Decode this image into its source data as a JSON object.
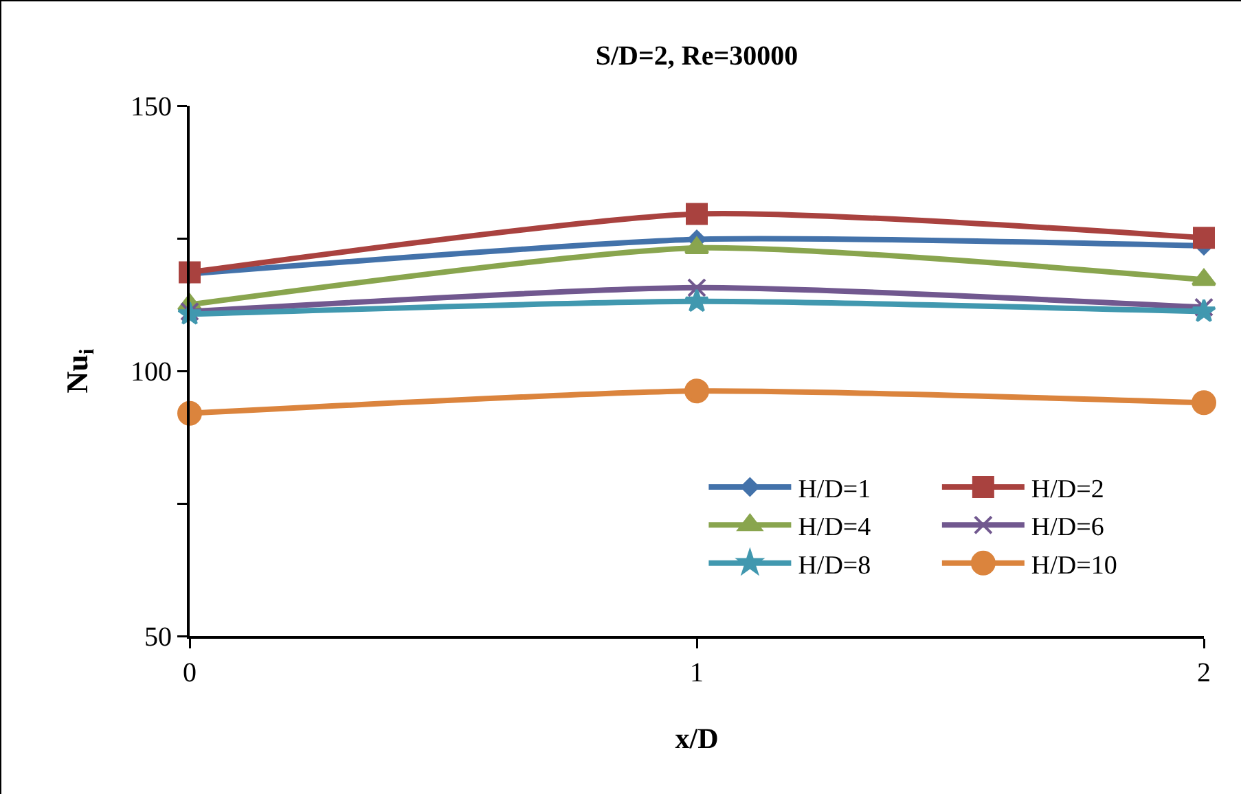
{
  "chart_data": {
    "type": "line",
    "title": "S/D=2, Re=30000",
    "xlabel": "x/D",
    "ylabel": "Nu$_{i}$",
    "x": [
      0,
      1,
      2
    ],
    "xlim": [
      0,
      2
    ],
    "xticks": [
      0,
      1,
      2
    ],
    "ylim": [
      50,
      150
    ],
    "yticks": [
      50,
      {
        "value": 75,
        "label": null
      },
      100,
      {
        "value": 125,
        "label": null
      },
      150
    ],
    "grid": false,
    "legend": "bottom right",
    "series": [
      {
        "name": "H/D=1",
        "color": "#4372aa",
        "marker": "diamond",
        "values": [
          118.3,
          124.8,
          123.6
        ]
      },
      {
        "name": "H/D=2",
        "color": "#a9423f",
        "marker": "square",
        "values": [
          118.6,
          129.6,
          125.1
        ]
      },
      {
        "name": "H/D=4",
        "color": "#89a54e",
        "marker": "triangle",
        "values": [
          112.5,
          123.2,
          117.2
        ]
      },
      {
        "name": "H/D=6",
        "color": "#71588f",
        "marker": "cross",
        "values": [
          111.2,
          115.7,
          112.0
        ]
      },
      {
        "name": "H/D=8",
        "color": "#4198af",
        "marker": "star",
        "values": [
          110.7,
          113.1,
          111.2
        ]
      },
      {
        "name": "H/D=10",
        "color": "#db843d",
        "marker": "circle",
        "values": [
          92.0,
          96.2,
          94.0
        ]
      }
    ]
  }
}
